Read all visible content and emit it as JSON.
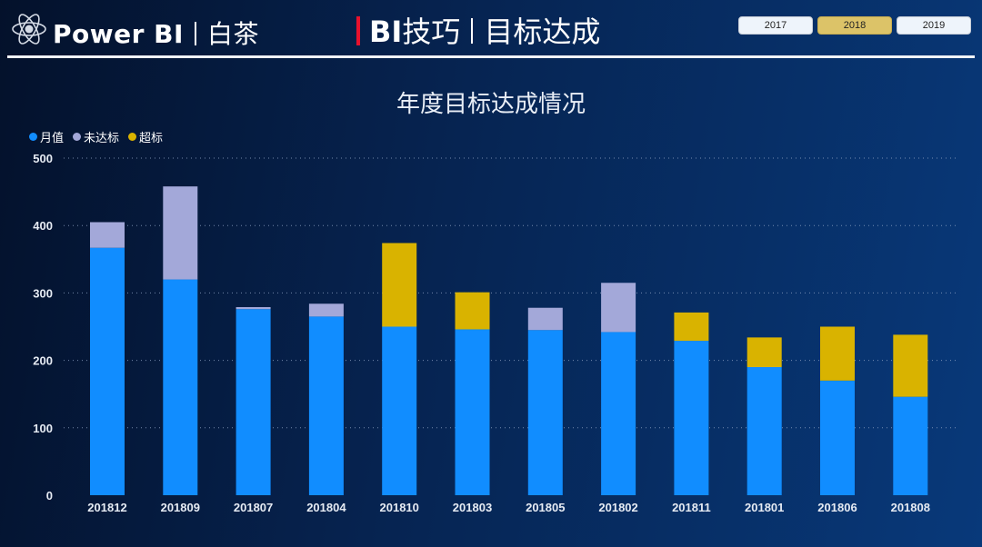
{
  "header": {
    "brand": "Power BI",
    "author": "白茶",
    "title_bi": "BI",
    "title_tips": "技巧",
    "title_topic": "目标达成"
  },
  "year_filter": {
    "options": [
      "2017",
      "2018",
      "2019"
    ],
    "selected": "2018"
  },
  "colors": {
    "monthly": "#118dff",
    "shortfall": "#a3a8d9",
    "exceeded": "#d9b300",
    "accent": "#e8112d"
  },
  "chart_data": {
    "type": "bar",
    "stacked": true,
    "title": "年度目标达成情况",
    "legend_position": "top-left",
    "grid": true,
    "categories": [
      "201812",
      "201809",
      "201807",
      "201804",
      "201810",
      "201803",
      "201805",
      "201802",
      "201811",
      "201801",
      "201806",
      "201808"
    ],
    "series": [
      {
        "name": "月值",
        "values": [
          367,
          320,
          276,
          265,
          250,
          246,
          245,
          242,
          229,
          190,
          170,
          146
        ]
      },
      {
        "name": "未达标",
        "values": [
          38,
          138,
          3,
          19,
          0,
          0,
          33,
          73,
          0,
          0,
          0,
          0
        ]
      },
      {
        "name": "超标",
        "values": [
          0,
          0,
          0,
          0,
          124,
          55,
          0,
          0,
          42,
          44,
          80,
          92
        ]
      }
    ],
    "ylim": [
      0,
      500
    ],
    "yticks": [
      0,
      100,
      200,
      300,
      400,
      500
    ],
    "xlabel": "",
    "ylabel": ""
  }
}
